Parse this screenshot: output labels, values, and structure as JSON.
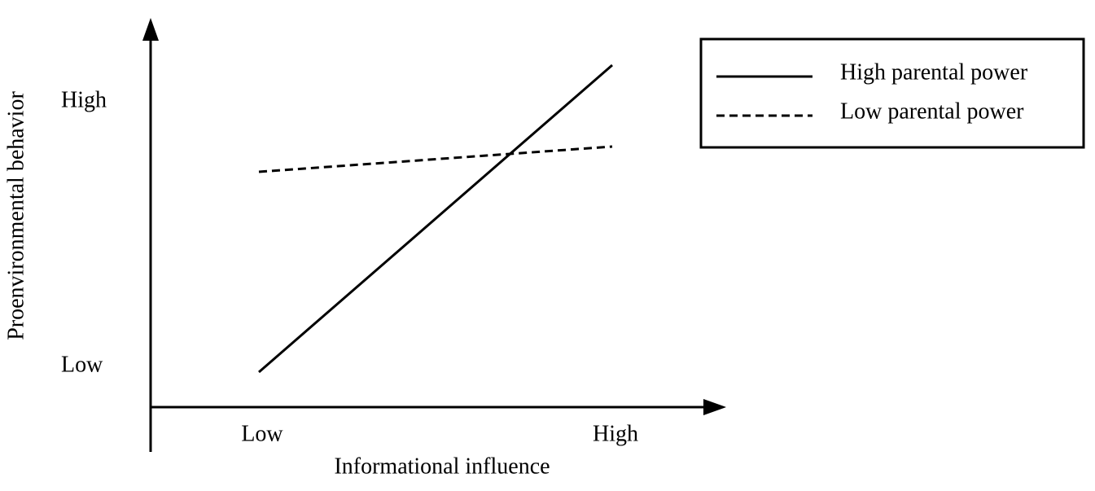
{
  "chart_data": {
    "type": "line",
    "x_label": "Informational influence",
    "y_label": "Proenvironmental behavior",
    "categories": [
      "Low",
      "High"
    ],
    "ylim": [
      0,
      95
    ],
    "yticks": [
      {
        "value": 10,
        "label": "Low"
      },
      {
        "value": 75,
        "label": "High"
      }
    ],
    "grid": false,
    "legend": "upper right",
    "series": [
      {
        "name": "High parental power",
        "color": "#000000",
        "line_style": "solid",
        "values": [
          8.6,
          84
        ]
      },
      {
        "name": "Low parental power",
        "color": "#000000",
        "line_style": "dashed",
        "values": [
          57.8,
          64
        ]
      }
    ]
  }
}
